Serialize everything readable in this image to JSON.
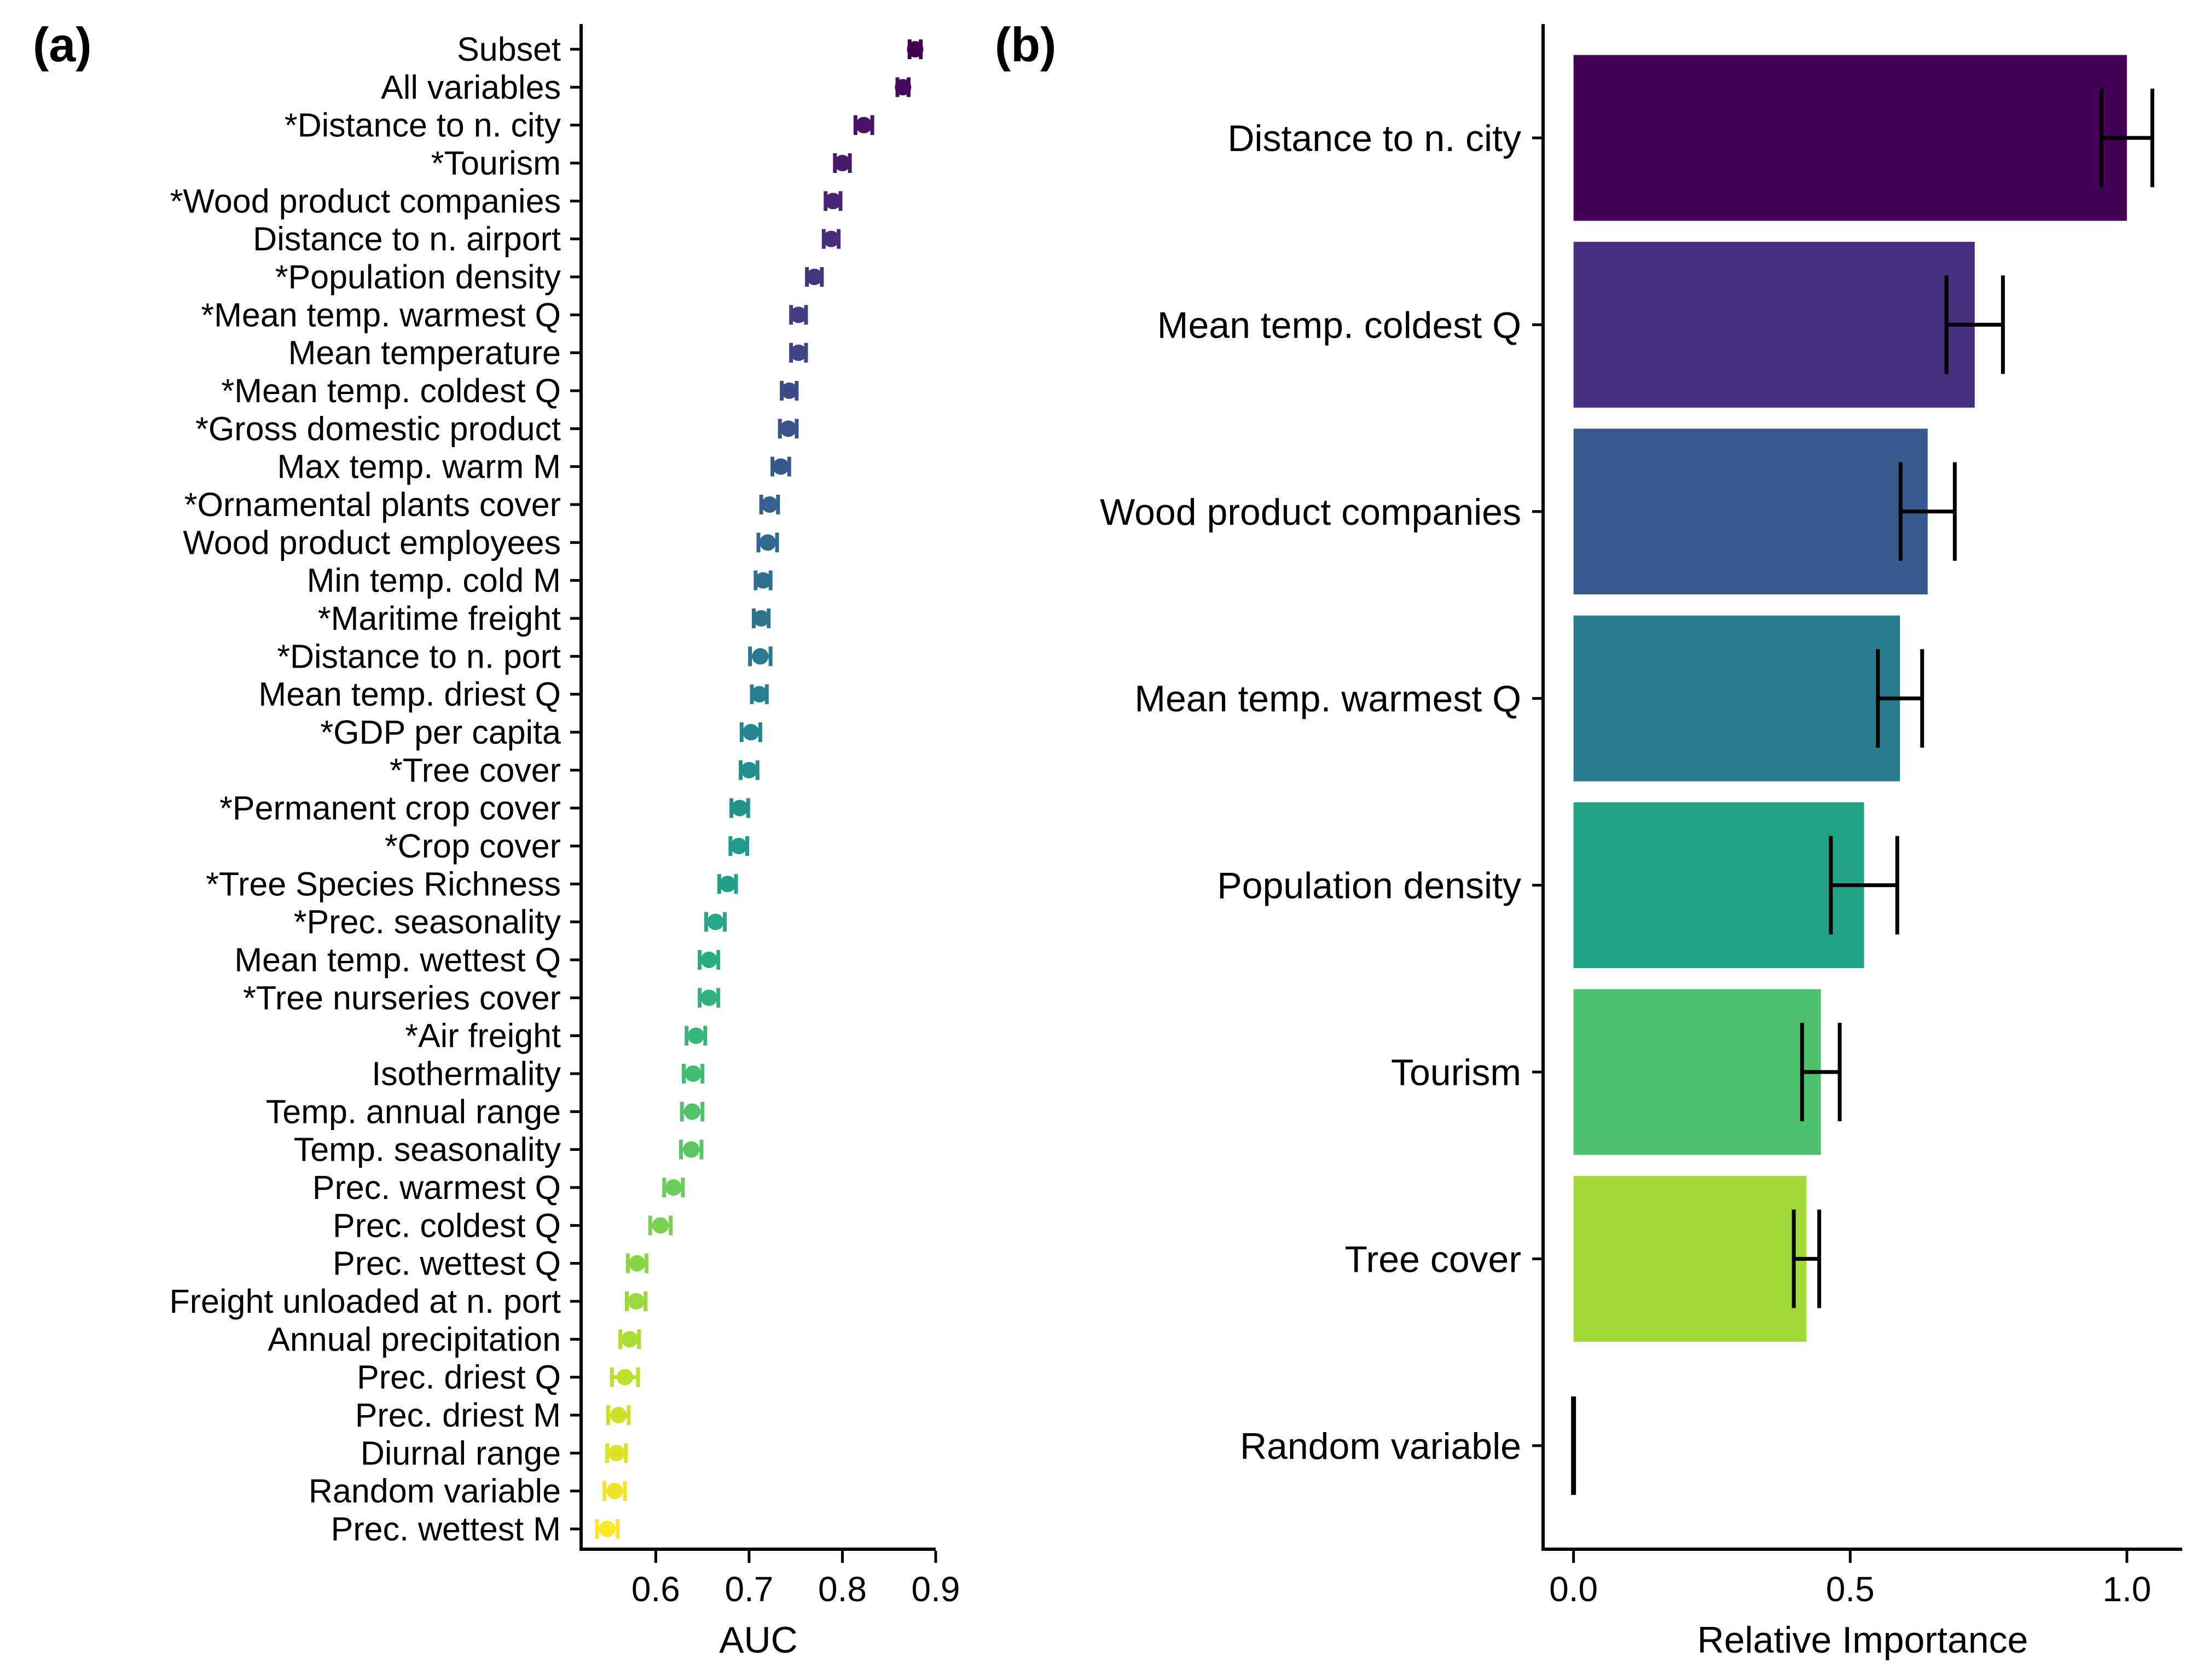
{
  "colors": {
    "palette": "viridis"
  },
  "chart_data": [
    {
      "panel_label": "(a)",
      "type": "scatter",
      "orientation": "horizontal",
      "error_bars": true,
      "xlabel": "AUC",
      "ylabel": "",
      "xlim": [
        0.52,
        0.9
      ],
      "xticks": [
        "0.6",
        "0.7",
        "0.8",
        "0.9"
      ],
      "grid": false,
      "legend": "none",
      "categories": [
        "Subset",
        "All variables",
        "*Distance to n. city",
        "*Tourism",
        "*Wood product companies",
        "Distance to n. airport",
        "*Population density",
        "*Mean temp. warmest Q",
        "Mean temperature",
        "*Mean temp. coldest Q",
        "*Gross domestic product",
        "Max temp. warm M",
        "*Ornamental plants cover",
        "Wood product employees",
        "Min temp. cold M",
        "*Maritime freight",
        "*Distance to n. port",
        "Mean temp. driest Q",
        "*GDP per capita",
        "*Tree cover",
        "*Permanent crop cover",
        "*Crop cover",
        "*Tree Species Richness",
        "*Prec. seasonality",
        "Mean temp. wettest Q",
        "*Tree nurseries cover",
        "*Air freight",
        "Isothermality",
        "Temp. annual range",
        "Temp. seasonality",
        "Prec. warmest Q",
        "Prec. coldest Q",
        "Prec. wettest Q",
        "Freight unloaded at n. port",
        "Annual precipitation",
        "Prec. driest Q",
        "Prec. driest M",
        "Diurnal range",
        "Random variable",
        "Prec. wettest M"
      ],
      "values": [
        0.878,
        0.865,
        0.823,
        0.8,
        0.79,
        0.788,
        0.77,
        0.753,
        0.753,
        0.743,
        0.742,
        0.734,
        0.722,
        0.72,
        0.715,
        0.713,
        0.712,
        0.711,
        0.702,
        0.7,
        0.69,
        0.689,
        0.677,
        0.664,
        0.657,
        0.657,
        0.643,
        0.64,
        0.639,
        0.638,
        0.619,
        0.605,
        0.58,
        0.579,
        0.572,
        0.567,
        0.56,
        0.558,
        0.556,
        0.548
      ],
      "errors": [
        0.006,
        0.006,
        0.009,
        0.008,
        0.008,
        0.008,
        0.008,
        0.008,
        0.008,
        0.008,
        0.009,
        0.009,
        0.009,
        0.01,
        0.008,
        0.008,
        0.011,
        0.008,
        0.01,
        0.009,
        0.009,
        0.009,
        0.009,
        0.01,
        0.01,
        0.01,
        0.01,
        0.01,
        0.011,
        0.011,
        0.01,
        0.011,
        0.01,
        0.01,
        0.01,
        0.014,
        0.011,
        0.01,
        0.011,
        0.011
      ]
    },
    {
      "panel_label": "(b)",
      "type": "bar",
      "orientation": "horizontal",
      "error_bars": true,
      "xlabel": "Relative Importance",
      "ylabel": "",
      "xlim": [
        -0.055,
        1.1
      ],
      "xticks": [
        "0.0",
        "0.5",
        "1.0"
      ],
      "grid": false,
      "legend": "none",
      "categories": [
        "Distance to n. city",
        "Mean temp. coldest Q",
        "Wood product companies",
        "Mean temp. warmest Q",
        "Population density",
        "Tourism",
        "Tree cover",
        "Random variable"
      ],
      "values": [
        1.0,
        0.725,
        0.64,
        0.59,
        0.525,
        0.447,
        0.421,
        0.0
      ],
      "errors": [
        0.046,
        0.051,
        0.049,
        0.04,
        0.06,
        0.034,
        0.023,
        0.0
      ]
    }
  ]
}
